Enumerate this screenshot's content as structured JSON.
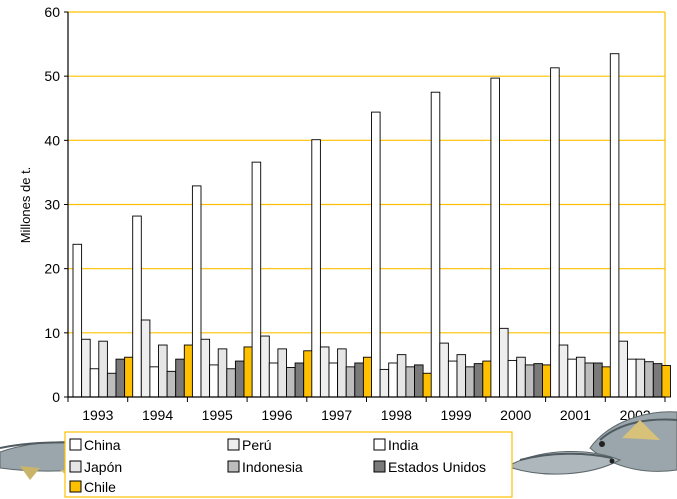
{
  "chart_data": {
    "type": "bar",
    "title": "",
    "xlabel": "",
    "ylabel": "Millones de t.",
    "ylim": [
      0,
      60
    ],
    "yticks": [
      0,
      10,
      20,
      30,
      40,
      50,
      60
    ],
    "grid": true,
    "legend_position": "bottom",
    "categories": [
      "1993",
      "1994",
      "1995",
      "1996",
      "1997",
      "1998",
      "1999",
      "2000",
      "2001",
      "2002"
    ],
    "series": [
      {
        "name": "China",
        "color": "#ffffff",
        "values": [
          23.8,
          28.2,
          32.9,
          36.6,
          40.1,
          44.4,
          47.5,
          49.7,
          51.3,
          53.5
        ]
      },
      {
        "name": "Perú",
        "color": "#eeeeee",
        "values": [
          9.0,
          12.0,
          9.0,
          9.5,
          7.8,
          4.3,
          8.4,
          10.7,
          8.1,
          8.7
        ]
      },
      {
        "name": "India",
        "color": "#ffffff",
        "values": [
          4.4,
          4.7,
          5.0,
          5.3,
          5.3,
          5.3,
          5.6,
          5.7,
          5.9,
          5.9
        ]
      },
      {
        "name": "Japón",
        "color": "#e6e6e6",
        "values": [
          8.7,
          8.1,
          7.5,
          7.5,
          7.5,
          6.6,
          6.6,
          6.2,
          6.2,
          5.9
        ]
      },
      {
        "name": "Indonesia",
        "color": "#bdbdbd",
        "values": [
          3.7,
          4.0,
          4.4,
          4.6,
          4.7,
          4.7,
          4.7,
          5.0,
          5.3,
          5.5
        ]
      },
      {
        "name": "Estados Unidos",
        "color": "#7a7a7a",
        "values": [
          5.9,
          5.9,
          5.6,
          5.3,
          5.3,
          5.0,
          5.2,
          5.2,
          5.3,
          5.2
        ]
      },
      {
        "name": "Chile",
        "color": "#ffc000",
        "values": [
          6.2,
          8.1,
          7.8,
          7.2,
          6.2,
          3.7,
          5.6,
          5.0,
          4.7,
          4.9
        ]
      }
    ]
  },
  "colors": {
    "gridline": "#ffc000",
    "axis": "#000000",
    "bar_stroke": "#000000",
    "legend_border": "#ffc000",
    "fish_body": "#9aa6ab",
    "fish_fin": "#d8c27a"
  },
  "decorations": [
    "fish-image-left",
    "fish-image-right"
  ]
}
